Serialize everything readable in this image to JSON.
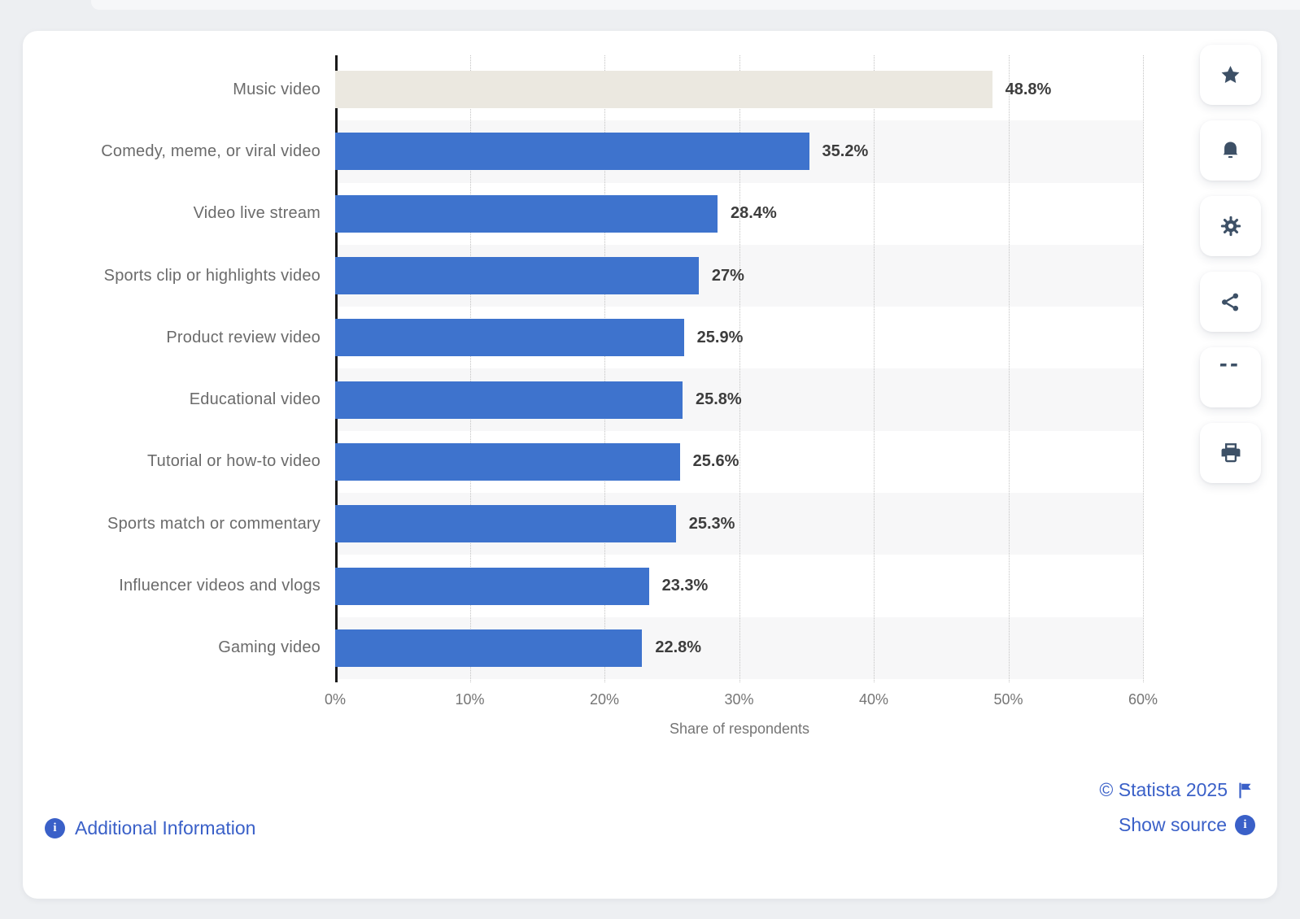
{
  "page": {
    "background": "#edeff2"
  },
  "chart_data": {
    "type": "bar",
    "orientation": "horizontal",
    "categories": [
      "Music video",
      "Comedy, meme, or viral video",
      "Video live stream",
      "Sports clip or highlights video",
      "Product review video",
      "Educational video",
      "Tutorial or how-to video",
      "Sports match or commentary",
      "Influencer videos and vlogs",
      "Gaming video"
    ],
    "values": [
      48.8,
      35.2,
      28.4,
      27,
      25.9,
      25.8,
      25.6,
      25.3,
      23.3,
      22.8
    ],
    "value_labels": [
      "48.8%",
      "35.2%",
      "28.4%",
      "27%",
      "25.9%",
      "25.8%",
      "25.6%",
      "25.3%",
      "23.3%",
      "22.8%"
    ],
    "xlabel": "Share of respondents",
    "xlim": [
      0,
      60
    ],
    "x_ticks": [
      "0%",
      "10%",
      "20%",
      "30%",
      "40%",
      "50%",
      "60%"
    ],
    "grid": "vertical dotted gridlines every 10%",
    "legend": "none",
    "colors": {
      "bar_default": "#3e73cd",
      "bar_highlighted_first_row": "#ebe8e0",
      "row_stripe": "#f7f7f8",
      "value_label": "#3d3d3d",
      "category_label": "#6b6b6b",
      "axis_line": "#1a1a1a",
      "tick_label": "#757575",
      "link": "#3a60c8",
      "page_bg": "#edeff2"
    }
  },
  "toolbar": {
    "buttons": [
      {
        "icon": "star-icon",
        "label": "favorite"
      },
      {
        "icon": "bell-icon",
        "label": "alerts"
      },
      {
        "icon": "gear-icon",
        "label": "settings"
      },
      {
        "icon": "share-icon",
        "label": "share"
      },
      {
        "icon": "quote-icon",
        "label": "cite"
      },
      {
        "icon": "printer-icon",
        "label": "print"
      }
    ]
  },
  "footer": {
    "additional_information": "Additional Information",
    "copyright": "© Statista 2025",
    "show_source": "Show source"
  }
}
